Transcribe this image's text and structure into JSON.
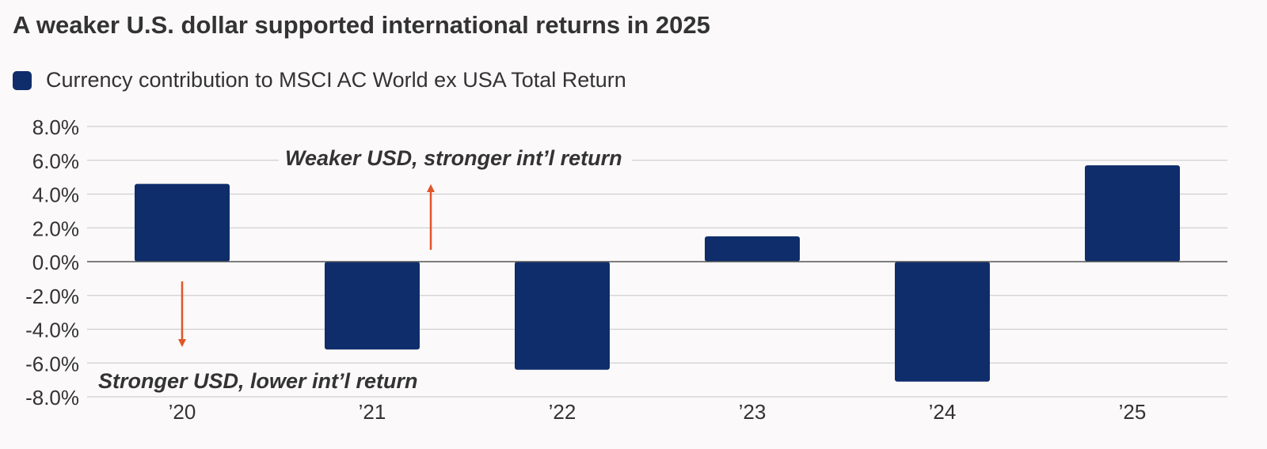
{
  "title": "A weaker U.S. dollar supported international returns in 2025",
  "legend": {
    "label": "Currency contribution to MSCI AC World ex USA Total Return",
    "color": "#0f2d6b"
  },
  "colors": {
    "bar": "#0f2d6b",
    "arrow": "#e0562a",
    "grid": "#d0d0d0",
    "zero_line": "#555555",
    "text": "#333333"
  },
  "annotations": {
    "up": "Weaker USD, stronger int’l return",
    "down": "Stronger USD, lower int’l return"
  },
  "chart_data": {
    "type": "bar",
    "categories": [
      "’20",
      "’21",
      "’22",
      "’23",
      "’24",
      "’25"
    ],
    "series": [
      {
        "name": "Currency contribution to MSCI AC World ex USA Total Return",
        "values": [
          4.6,
          -5.2,
          -6.4,
          1.5,
          -7.1,
          5.7
        ]
      }
    ],
    "ylim": [
      -8,
      8
    ],
    "yticks": [
      8,
      6,
      4,
      2,
      0,
      -2,
      -4,
      -6,
      -8
    ],
    "ytick_labels": [
      "8.0%",
      "6.0%",
      "4.0%",
      "2.0%",
      "0.0%",
      "-2.0%",
      "-4.0%",
      "-6.0%",
      "-8.0%"
    ],
    "grid": true,
    "legend_position": "top-left"
  }
}
